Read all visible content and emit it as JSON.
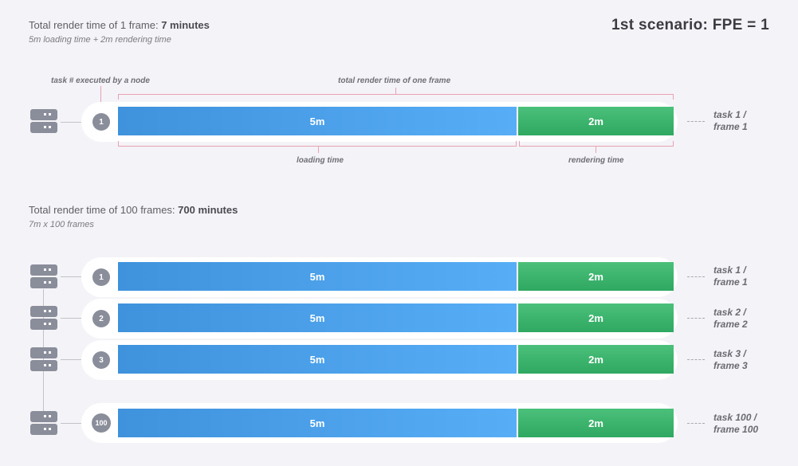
{
  "section1": {
    "title_prefix": "Total render time of 1 frame: ",
    "title_bold": "7 minutes",
    "subtitle": "5m loading time + 2m rendering time"
  },
  "scenario_label": "1st scenario:  FPE = 1",
  "annotations": {
    "task_executed": "task # executed by a node",
    "total_one_frame": "total render time of one frame",
    "loading_time": "loading time",
    "rendering_time": "rendering time"
  },
  "section2": {
    "title_prefix": "Total render time of 100 frames: ",
    "title_bold": "700 minutes",
    "subtitle": "7m x 100 frames"
  },
  "single_row": {
    "node": "1",
    "load": "5m",
    "render": "2m",
    "task_line1": "task 1 /",
    "task_line2": "frame 1"
  },
  "rows": [
    {
      "node": "1",
      "load": "5m",
      "render": "2m",
      "task_line1": "task 1 /",
      "task_line2": "frame 1"
    },
    {
      "node": "2",
      "load": "5m",
      "render": "2m",
      "task_line1": "task 2 /",
      "task_line2": "frame 2"
    },
    {
      "node": "3",
      "load": "5m",
      "render": "2m",
      "task_line1": "task 3 /",
      "task_line2": "frame 3"
    },
    {
      "node": "100",
      "load": "5m",
      "render": "2m",
      "task_line1": "task 100 /",
      "task_line2": "frame 100"
    }
  ],
  "colors": {
    "loading_bar": "#4fa3ee",
    "rendering_bar": "#3db46d",
    "node_badge": "#8a8d9a",
    "bracket": "#e7a3b2"
  }
}
